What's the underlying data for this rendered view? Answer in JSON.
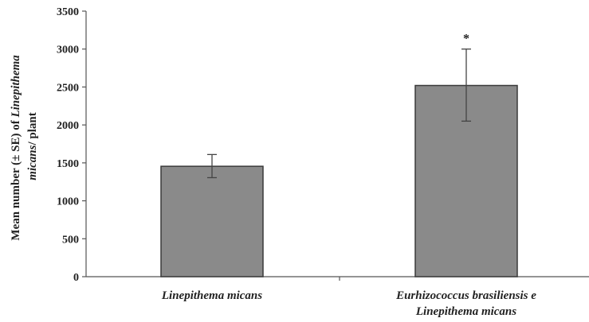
{
  "chart_data": {
    "type": "bar",
    "categories": [
      [
        "Linepithema micans"
      ],
      [
        "Eurhizococcus brasiliensis e",
        "Linepithema micans"
      ]
    ],
    "values": [
      1455,
      2520
    ],
    "error_minus": [
      150,
      470
    ],
    "error_plus": [
      155,
      480
    ],
    "annotations": [
      "",
      "*"
    ],
    "ylabel": {
      "prefix": "Mean number (± SE) of ",
      "line1_italic": "Linepithema",
      "line2_italic": "micans",
      "line2_suffix": "/ plant"
    },
    "ylim": [
      0,
      3500
    ],
    "yticks": [
      0,
      500,
      1000,
      1500,
      2000,
      2500,
      3000,
      3500
    ],
    "grid": false,
    "bar_color": "#8a8a8a",
    "bar_edge_color": "#3a3a3a",
    "axis_color": "#555555"
  }
}
